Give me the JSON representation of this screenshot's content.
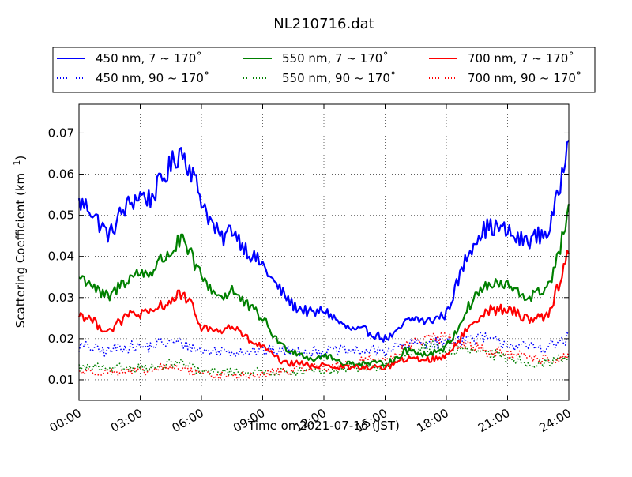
{
  "chart_data": {
    "type": "line",
    "title": "NL210716.dat",
    "xlabel": "Time on 2021-07-16 (JST)",
    "ylabel_main": "Scattering Coefficient (km",
    "ylabel_sup": "−1",
    "ylabel_close": ")",
    "xlim": [
      "00:00",
      "24:00"
    ],
    "ylim": [
      0.005,
      0.077
    ],
    "x_ticks": [
      "00:00",
      "03:00",
      "06:00",
      "09:00",
      "12:00",
      "15:00",
      "18:00",
      "21:00",
      "24:00"
    ],
    "y_ticks": [
      0.01,
      0.02,
      0.03,
      0.04,
      0.05,
      0.06,
      0.07
    ],
    "y_tick_labels": [
      "0.01",
      "0.02",
      "0.03",
      "0.04",
      "0.05",
      "0.06",
      "0.07"
    ],
    "grid": true,
    "legend_position": "top",
    "x_hours": [
      0,
      0.5,
      1,
      1.5,
      2,
      2.5,
      3,
      3.5,
      4,
      4.5,
      5,
      5.5,
      6,
      6.5,
      7,
      7.5,
      8,
      8.5,
      9,
      9.5,
      10,
      10.5,
      11,
      11.5,
      12,
      12.5,
      13,
      13.5,
      14,
      14.5,
      15,
      15.5,
      16,
      16.5,
      17,
      17.5,
      18,
      18.5,
      19,
      19.5,
      20,
      20.5,
      21,
      21.5,
      22,
      22.5,
      23,
      23.5,
      24
    ],
    "series": [
      {
        "name": "450 nm, 7 ~ 170˚",
        "color": "#0000ff",
        "style": "solid",
        "values": [
          0.053,
          0.052,
          0.048,
          0.045,
          0.05,
          0.053,
          0.055,
          0.054,
          0.058,
          0.062,
          0.066,
          0.061,
          0.054,
          0.048,
          0.044,
          0.047,
          0.043,
          0.04,
          0.038,
          0.034,
          0.031,
          0.028,
          0.027,
          0.026,
          0.027,
          0.025,
          0.023,
          0.022,
          0.022,
          0.021,
          0.02,
          0.021,
          0.024,
          0.025,
          0.024,
          0.025,
          0.026,
          0.033,
          0.04,
          0.045,
          0.047,
          0.047,
          0.046,
          0.044,
          0.044,
          0.045,
          0.046,
          0.055,
          0.071
        ]
      },
      {
        "name": "450 nm, 90 ~ 170˚",
        "color": "#0000ff",
        "style": "dotted",
        "values": [
          0.018,
          0.018,
          0.017,
          0.017,
          0.018,
          0.018,
          0.018,
          0.018,
          0.019,
          0.019,
          0.019,
          0.018,
          0.017,
          0.017,
          0.017,
          0.017,
          0.017,
          0.017,
          0.017,
          0.017,
          0.017,
          0.017,
          0.017,
          0.017,
          0.017,
          0.017,
          0.017,
          0.017,
          0.017,
          0.017,
          0.017,
          0.018,
          0.018,
          0.019,
          0.019,
          0.019,
          0.019,
          0.02,
          0.02,
          0.02,
          0.02,
          0.019,
          0.019,
          0.018,
          0.018,
          0.018,
          0.018,
          0.019,
          0.02
        ]
      },
      {
        "name": "550 nm, 7 ~ 170˚",
        "color": "#008000",
        "style": "solid",
        "values": [
          0.035,
          0.034,
          0.031,
          0.03,
          0.033,
          0.035,
          0.036,
          0.036,
          0.039,
          0.041,
          0.044,
          0.04,
          0.035,
          0.032,
          0.03,
          0.032,
          0.029,
          0.027,
          0.025,
          0.021,
          0.018,
          0.017,
          0.016,
          0.015,
          0.016,
          0.015,
          0.014,
          0.014,
          0.014,
          0.014,
          0.014,
          0.015,
          0.017,
          0.017,
          0.016,
          0.017,
          0.018,
          0.022,
          0.027,
          0.031,
          0.033,
          0.033,
          0.033,
          0.031,
          0.03,
          0.031,
          0.033,
          0.04,
          0.052
        ]
      },
      {
        "name": "550 nm, 90 ~ 170˚",
        "color": "#008000",
        "style": "dotted",
        "values": [
          0.013,
          0.013,
          0.013,
          0.012,
          0.013,
          0.013,
          0.013,
          0.013,
          0.013,
          0.014,
          0.014,
          0.013,
          0.012,
          0.012,
          0.012,
          0.012,
          0.012,
          0.012,
          0.012,
          0.012,
          0.012,
          0.012,
          0.012,
          0.012,
          0.012,
          0.012,
          0.013,
          0.013,
          0.013,
          0.013,
          0.013,
          0.014,
          0.016,
          0.017,
          0.018,
          0.018,
          0.017,
          0.017,
          0.017,
          0.017,
          0.016,
          0.016,
          0.015,
          0.015,
          0.014,
          0.014,
          0.014,
          0.015,
          0.016
        ]
      },
      {
        "name": "700 nm, 7 ~ 170˚",
        "color": "#ff0000",
        "style": "solid",
        "values": [
          0.026,
          0.025,
          0.023,
          0.022,
          0.024,
          0.026,
          0.026,
          0.026,
          0.028,
          0.029,
          0.031,
          0.028,
          0.023,
          0.022,
          0.022,
          0.023,
          0.021,
          0.019,
          0.018,
          0.016,
          0.014,
          0.014,
          0.014,
          0.013,
          0.014,
          0.013,
          0.013,
          0.013,
          0.013,
          0.013,
          0.013,
          0.014,
          0.015,
          0.015,
          0.015,
          0.015,
          0.016,
          0.019,
          0.022,
          0.025,
          0.027,
          0.027,
          0.027,
          0.026,
          0.025,
          0.025,
          0.026,
          0.033,
          0.042
        ]
      },
      {
        "name": "700 nm, 90 ~ 170˚",
        "color": "#ff0000",
        "style": "dotted",
        "values": [
          0.012,
          0.012,
          0.012,
          0.012,
          0.012,
          0.012,
          0.012,
          0.012,
          0.013,
          0.013,
          0.013,
          0.012,
          0.012,
          0.011,
          0.011,
          0.011,
          0.011,
          0.011,
          0.011,
          0.012,
          0.012,
          0.012,
          0.013,
          0.013,
          0.013,
          0.013,
          0.014,
          0.014,
          0.015,
          0.015,
          0.015,
          0.016,
          0.018,
          0.019,
          0.02,
          0.02,
          0.02,
          0.019,
          0.018,
          0.018,
          0.017,
          0.017,
          0.016,
          0.016,
          0.015,
          0.015,
          0.015,
          0.015,
          0.016
        ]
      }
    ]
  }
}
